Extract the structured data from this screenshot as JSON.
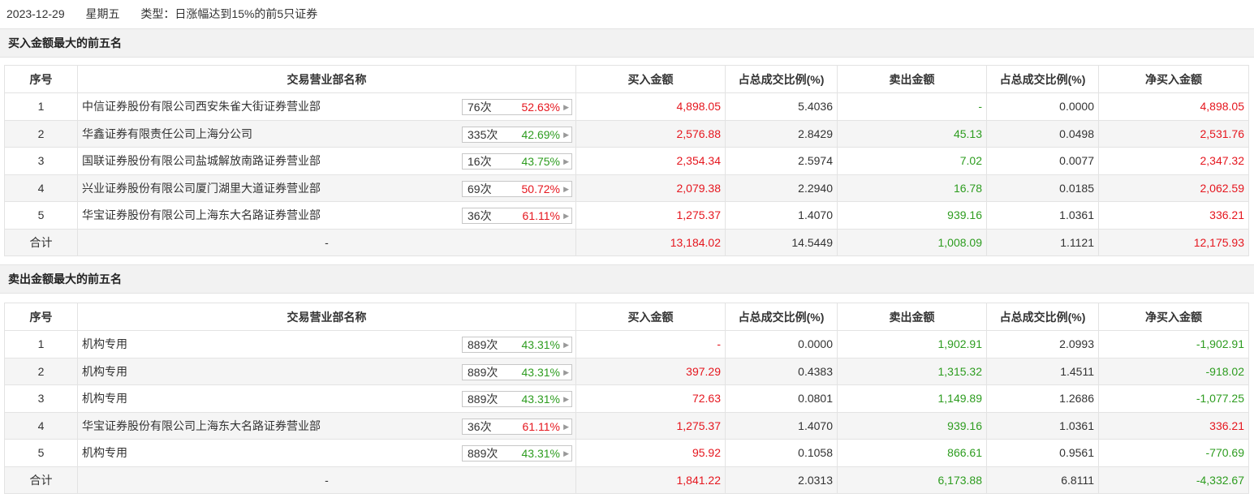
{
  "header": {
    "date": "2023-12-29",
    "weekday": "星期五",
    "type_text": "类型：日涨幅达到15%的前5只证券"
  },
  "columns": [
    "序号",
    "交易营业部名称",
    "买入金额",
    "占总成交比例(%)",
    "卖出金额",
    "占总成交比例(%)",
    "净买入金额"
  ],
  "colors": {
    "red": "#e5161e",
    "green": "#2d9c1f"
  },
  "buy_section": {
    "title": "买入金额最大的前五名",
    "rows": [
      {
        "seq": "1",
        "dept": "中信证券股份有限公司西安朱雀大街证券营业部",
        "count": "76次",
        "rate": "52.63%",
        "rate_color": "red",
        "buy": "4,898.05",
        "buy_ratio": "5.4036",
        "sell": "-",
        "sell_ratio": "0.0000",
        "net": "4,898.05",
        "net_color": "red"
      },
      {
        "seq": "2",
        "dept": "华鑫证券有限责任公司上海分公司",
        "count": "335次",
        "rate": "42.69%",
        "rate_color": "green",
        "buy": "2,576.88",
        "buy_ratio": "2.8429",
        "sell": "45.13",
        "sell_ratio": "0.0498",
        "net": "2,531.76",
        "net_color": "red"
      },
      {
        "seq": "3",
        "dept": "国联证券股份有限公司盐城解放南路证券营业部",
        "count": "16次",
        "rate": "43.75%",
        "rate_color": "green",
        "buy": "2,354.34",
        "buy_ratio": "2.5974",
        "sell": "7.02",
        "sell_ratio": "0.0077",
        "net": "2,347.32",
        "net_color": "red"
      },
      {
        "seq": "4",
        "dept": "兴业证券股份有限公司厦门湖里大道证券营业部",
        "count": "69次",
        "rate": "50.72%",
        "rate_color": "red",
        "buy": "2,079.38",
        "buy_ratio": "2.2940",
        "sell": "16.78",
        "sell_ratio": "0.0185",
        "net": "2,062.59",
        "net_color": "red"
      },
      {
        "seq": "5",
        "dept": "华宝证券股份有限公司上海东大名路证券营业部",
        "count": "36次",
        "rate": "61.11%",
        "rate_color": "red",
        "buy": "1,275.37",
        "buy_ratio": "1.4070",
        "sell": "939.16",
        "sell_ratio": "1.0361",
        "net": "336.21",
        "net_color": "red"
      }
    ],
    "total": {
      "label": "合计",
      "dept": "-",
      "buy": "13,184.02",
      "buy_ratio": "14.5449",
      "sell": "1,008.09",
      "sell_ratio": "1.1121",
      "net": "12,175.93",
      "net_color": "red"
    }
  },
  "sell_section": {
    "title": "卖出金额最大的前五名",
    "rows": [
      {
        "seq": "1",
        "dept": "机构专用",
        "count": "889次",
        "rate": "43.31%",
        "rate_color": "green",
        "buy": "-",
        "buy_ratio": "0.0000",
        "sell": "1,902.91",
        "sell_ratio": "2.0993",
        "net": "-1,902.91",
        "net_color": "green"
      },
      {
        "seq": "2",
        "dept": "机构专用",
        "count": "889次",
        "rate": "43.31%",
        "rate_color": "green",
        "buy": "397.29",
        "buy_ratio": "0.4383",
        "sell": "1,315.32",
        "sell_ratio": "1.4511",
        "net": "-918.02",
        "net_color": "green"
      },
      {
        "seq": "3",
        "dept": "机构专用",
        "count": "889次",
        "rate": "43.31%",
        "rate_color": "green",
        "buy": "72.63",
        "buy_ratio": "0.0801",
        "sell": "1,149.89",
        "sell_ratio": "1.2686",
        "net": "-1,077.25",
        "net_color": "green"
      },
      {
        "seq": "4",
        "dept": "华宝证券股份有限公司上海东大名路证券营业部",
        "count": "36次",
        "rate": "61.11%",
        "rate_color": "red",
        "buy": "1,275.37",
        "buy_ratio": "1.4070",
        "sell": "939.16",
        "sell_ratio": "1.0361",
        "net": "336.21",
        "net_color": "red"
      },
      {
        "seq": "5",
        "dept": "机构专用",
        "count": "889次",
        "rate": "43.31%",
        "rate_color": "green",
        "buy": "95.92",
        "buy_ratio": "0.1058",
        "sell": "866.61",
        "sell_ratio": "0.9561",
        "net": "-770.69",
        "net_color": "green"
      }
    ],
    "total": {
      "label": "合计",
      "dept": "-",
      "buy": "1,841.22",
      "buy_ratio": "2.0313",
      "sell": "6,173.88",
      "sell_ratio": "6.8111",
      "net": "-4,332.67",
      "net_color": "green"
    }
  },
  "icons": {
    "badge_arrow": "triangle-right-icon"
  }
}
